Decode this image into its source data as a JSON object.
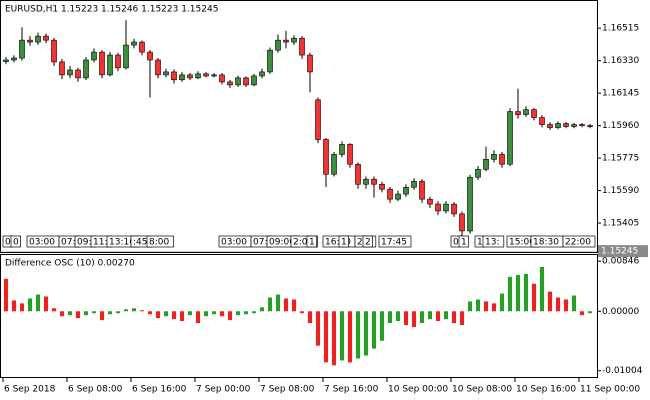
{
  "chart_data": [
    {
      "type": "candlestick",
      "title": "EURUSD,H1 1.15223 1.15246 1.15223 1.15245",
      "up_color": "#3a8f3a",
      "down_color": "#ff2d2d",
      "ylim": [
        1.1524,
        1.1667
      ],
      "yticks": [
        1.16515,
        {
          "value": 1.1633,
          "label": "1.16330"
        },
        1.16145,
        {
          "value": 1.1596,
          "label": "1.15960"
        },
        1.15775,
        {
          "value": 1.1559,
          "label": "1.15590"
        },
        1.15405
      ],
      "last_price": {
        "value": 1.15245,
        "label": "1.15245"
      },
      "categories": [
        "6 Sep 2018",
        null,
        null,
        null,
        null,
        null,
        null,
        null,
        "6 Sep 08:00",
        null,
        null,
        null,
        null,
        null,
        null,
        null,
        "6 Sep 16:00",
        null,
        null,
        null,
        null,
        null,
        null,
        null,
        "7 Sep 00:00",
        null,
        null,
        null,
        null,
        null,
        null,
        null,
        "7 Sep 08:00",
        null,
        null,
        null,
        null,
        null,
        null,
        null,
        "7 Sep 16:00",
        null,
        null,
        null,
        null,
        null,
        null,
        null,
        "10 Sep 00:00",
        null,
        null,
        null,
        null,
        null,
        null,
        null,
        "10 Sep 08:00",
        null,
        null,
        null,
        null,
        null,
        null,
        null,
        "10 Sep 16:00",
        null,
        null,
        null,
        null,
        null,
        null,
        null,
        "11 Sep 00:00",
        null
      ],
      "open": [
        1.16325,
        1.16334,
        1.16345,
        1.16447,
        1.16436,
        1.1647,
        1.16447,
        1.16323,
        1.16249,
        1.16277,
        1.16232,
        1.16334,
        1.16379,
        1.16249,
        1.16362,
        1.16289,
        1.16419,
        1.16436,
        1.16379,
        1.16334,
        1.16249,
        1.16266,
        1.16221,
        1.16249,
        1.16232,
        1.16255,
        1.16243,
        1.16249,
        1.16209,
        1.16192,
        1.16232,
        1.16192,
        1.16243,
        1.16266,
        1.1639,
        1.16447,
        1.16436,
        1.16458,
        1.16362,
        1.16107,
        1.15881,
        1.15683,
        1.15796,
        1.15853,
        1.1574,
        1.15626,
        1.15655,
        1.15626,
        1.15598,
        1.15541,
        1.1557,
        1.15609,
        1.15643,
        1.15541,
        1.15513,
        1.15474,
        1.15513,
        1.15457,
        1.1536,
        1.15666,
        1.15711,
        1.15768,
        1.15796,
        1.1574,
        1.1604,
        1.16023,
        1.16051,
        1.16006,
        1.15966,
        1.15949,
        1.15972,
        1.15955,
        1.15966,
        1.1596
      ],
      "high": [
        1.1635,
        1.1636,
        1.1652,
        1.1647,
        1.1649,
        1.16485,
        1.1646,
        1.1634,
        1.163,
        1.1629,
        1.1635,
        1.164,
        1.1639,
        1.1638,
        1.16375,
        1.1656,
        1.16455,
        1.16445,
        1.1639,
        1.16345,
        1.16285,
        1.1628,
        1.16265,
        1.1626,
        1.1627,
        1.16265,
        1.1626,
        1.1626,
        1.1622,
        1.16245,
        1.1624,
        1.16255,
        1.16285,
        1.16405,
        1.1648,
        1.165,
        1.16475,
        1.1647,
        1.16375,
        1.1612,
        1.1589,
        1.1581,
        1.1587,
        1.1586,
        1.1575,
        1.1567,
        1.1567,
        1.1564,
        1.1561,
        1.1559,
        1.15625,
        1.1566,
        1.15655,
        1.15555,
        1.1553,
        1.1553,
        1.15525,
        1.1547,
        1.1568,
        1.1573,
        1.1584,
        1.1582,
        1.1581,
        1.1606,
        1.1617,
        1.1607,
        1.1606,
        1.1602,
        1.1598,
        1.15985,
        1.1598,
        1.15975,
        1.15975,
        1.1597
      ],
      "low": [
        1.1631,
        1.1632,
        1.1633,
        1.16415,
        1.1642,
        1.1643,
        1.163,
        1.16225,
        1.1623,
        1.1621,
        1.1622,
        1.1632,
        1.1623,
        1.1624,
        1.1627,
        1.1628,
        1.164,
        1.1636,
        1.1612,
        1.1623,
        1.16235,
        1.162,
        1.1621,
        1.1622,
        1.16225,
        1.16235,
        1.16235,
        1.16195,
        1.16175,
        1.1618,
        1.1618,
        1.16185,
        1.1623,
        1.16255,
        1.16375,
        1.164,
        1.1642,
        1.1634,
        1.1615,
        1.1586,
        1.1561,
        1.1567,
        1.1578,
        1.1572,
        1.156,
        1.156,
        1.1555,
        1.1558,
        1.1552,
        1.1553,
        1.15555,
        1.15595,
        1.1552,
        1.1549,
        1.1545,
        1.1546,
        1.1544,
        1.1533,
        1.15345,
        1.1565,
        1.157,
        1.1575,
        1.1572,
        1.1573,
        1.16,
        1.1601,
        1.1599,
        1.1595,
        1.15935,
        1.1594,
        1.15945,
        1.15945,
        1.1595,
        1.15945
      ],
      "close": [
        1.16334,
        1.16345,
        1.16447,
        1.16436,
        1.1647,
        1.16447,
        1.16323,
        1.16249,
        1.16277,
        1.16232,
        1.16334,
        1.16379,
        1.16249,
        1.16362,
        1.16289,
        1.16419,
        1.16436,
        1.16379,
        1.16334,
        1.16249,
        1.16266,
        1.16221,
        1.16249,
        1.16232,
        1.16255,
        1.16243,
        1.16249,
        1.16209,
        1.16192,
        1.16232,
        1.16192,
        1.16243,
        1.16266,
        1.1639,
        1.16447,
        1.16436,
        1.16458,
        1.16362,
        1.16266,
        1.15881,
        1.15683,
        1.15796,
        1.15853,
        1.1574,
        1.15626,
        1.15655,
        1.15626,
        1.15598,
        1.15541,
        1.1557,
        1.15609,
        1.15643,
        1.15541,
        1.15513,
        1.15474,
        1.15513,
        1.15457,
        1.1536,
        1.15666,
        1.15711,
        1.15768,
        1.15796,
        1.1574,
        1.1604,
        1.16023,
        1.16051,
        1.16006,
        1.15966,
        1.15949,
        1.15972,
        1.15955,
        1.15966,
        1.1596,
        1.15955
      ],
      "events": [
        {
          "bar": 0,
          "label": "0"
        },
        {
          "bar": 1,
          "label": "0"
        },
        {
          "bar": 3,
          "label": "03:00"
        },
        {
          "bar": 7,
          "label": "07:"
        },
        {
          "bar": 9,
          "label": "09:"
        },
        {
          "bar": 11,
          "label": "11:"
        },
        {
          "bar": 13,
          "label": "13:16"
        },
        {
          "bar": 16,
          "label": ":45"
        },
        {
          "bar": 18,
          "label": "8:00"
        },
        {
          "bar": 27,
          "label": "03:00"
        },
        {
          "bar": 31,
          "label": "07:"
        },
        {
          "bar": 33,
          "label": "09:00"
        },
        {
          "bar": 36,
          "label": "2:00"
        },
        {
          "bar": 38,
          "label": "1"
        },
        {
          "bar": 40,
          "label": "16:00"
        },
        {
          "bar": 42,
          "label": "1"
        },
        {
          "bar": 44,
          "label": "20:"
        },
        {
          "bar": 45,
          "label": "2"
        },
        {
          "bar": 47,
          "label": "17:45"
        },
        {
          "bar": 56,
          "label": "0"
        },
        {
          "bar": 57,
          "label": "1"
        },
        {
          "bar": 59,
          "label": "1"
        },
        {
          "bar": 60,
          "label": "13:"
        },
        {
          "bar": 63,
          "label": "15:00"
        },
        {
          "bar": 66,
          "label": "18:30"
        },
        {
          "bar": 70,
          "label": "22:00"
        }
      ]
    },
    {
      "type": "bar",
      "title": "Difference OSC (10) 0.00270",
      "up_color": "#1fa31f",
      "down_color": "#ff1a1a",
      "ylim": [
        -0.0111,
        0.0095
      ],
      "yticks": [
        0.00846,
        {
          "value": 0,
          "label": "0.00000"
        },
        -0.01004
      ],
      "values": [
        0.00548,
        0.00183,
        0.00133,
        0.00216,
        0.00282,
        0.00249,
        0.0005,
        -0.00083,
        -0.00066,
        -0.00116,
        -0.00066,
        -0.00033,
        -0.00149,
        -0.0005,
        -0.00033,
        0.00033,
        0.0005,
        0.00017,
        -0.0005,
        -0.00116,
        -0.00083,
        -0.00133,
        -0.00166,
        -0.00066,
        -0.00199,
        -0.00083,
        -0.0005,
        -0.00083,
        -0.00149,
        -0.00066,
        -0.0005,
        -0.00033,
        0.00066,
        0.00232,
        0.00282,
        0.00216,
        0.00199,
        -0.00033,
        -0.00199,
        -0.00581,
        -0.00863,
        -0.00913,
        -0.0083,
        -0.00863,
        -0.00797,
        -0.00747,
        -0.00631,
        -0.00498,
        -0.00199,
        -0.00166,
        -0.00232,
        -0.00266,
        -0.00199,
        -0.00133,
        -0.00166,
        -0.00133,
        -0.00199,
        -0.00232,
        0.00166,
        0.00199,
        0.00166,
        0.00133,
        0.00299,
        0.00581,
        0.00614,
        0.00631,
        0.00465,
        0.00747,
        0.00332,
        0.00232,
        0.00199,
        0.00266,
        -0.00066,
        -0.00033
      ]
    }
  ]
}
